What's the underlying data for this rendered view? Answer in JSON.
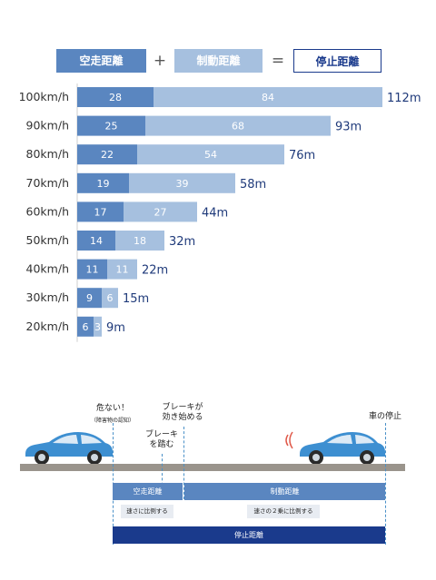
{
  "legend": {
    "reaction": "空走距離",
    "plus": "+",
    "braking": "制動距離",
    "equals": "=",
    "stopping": "停止距離"
  },
  "colors": {
    "reaction": "#5a86c0",
    "braking": "#a6c0df",
    "stopping_dark": "#1a3a8c",
    "text_total": "#1f3a7a",
    "road": "#9a948c"
  },
  "chart_data": {
    "type": "bar",
    "orientation": "horizontal",
    "stacked": true,
    "categories": [
      "100km/h",
      "90km/h",
      "80km/h",
      "70km/h",
      "60km/h",
      "50km/h",
      "40km/h",
      "30km/h",
      "20km/h"
    ],
    "series": [
      {
        "name": "空走距離",
        "values": [
          28,
          25,
          22,
          19,
          17,
          14,
          11,
          9,
          6
        ]
      },
      {
        "name": "制動距離",
        "values": [
          84,
          68,
          54,
          39,
          27,
          18,
          11,
          6,
          3
        ]
      }
    ],
    "totals": [
      "112m",
      "93m",
      "76m",
      "58m",
      "44m",
      "32m",
      "22m",
      "15m",
      "9m"
    ],
    "xlim": [
      0,
      112
    ]
  },
  "diagram": {
    "danger": "危ない！",
    "danger_sub": "（障害物の認知）",
    "brake_step": "ブレーキ\nを踏む",
    "brake_start": "ブレーキが\n効き始める",
    "car_stop": "車の停止",
    "reaction_label": "空走距離",
    "braking_label": "制動距離",
    "reaction_note": "速さに比例する",
    "braking_note": "速さの２乗に比例する",
    "stopping_label": "停止距離"
  }
}
